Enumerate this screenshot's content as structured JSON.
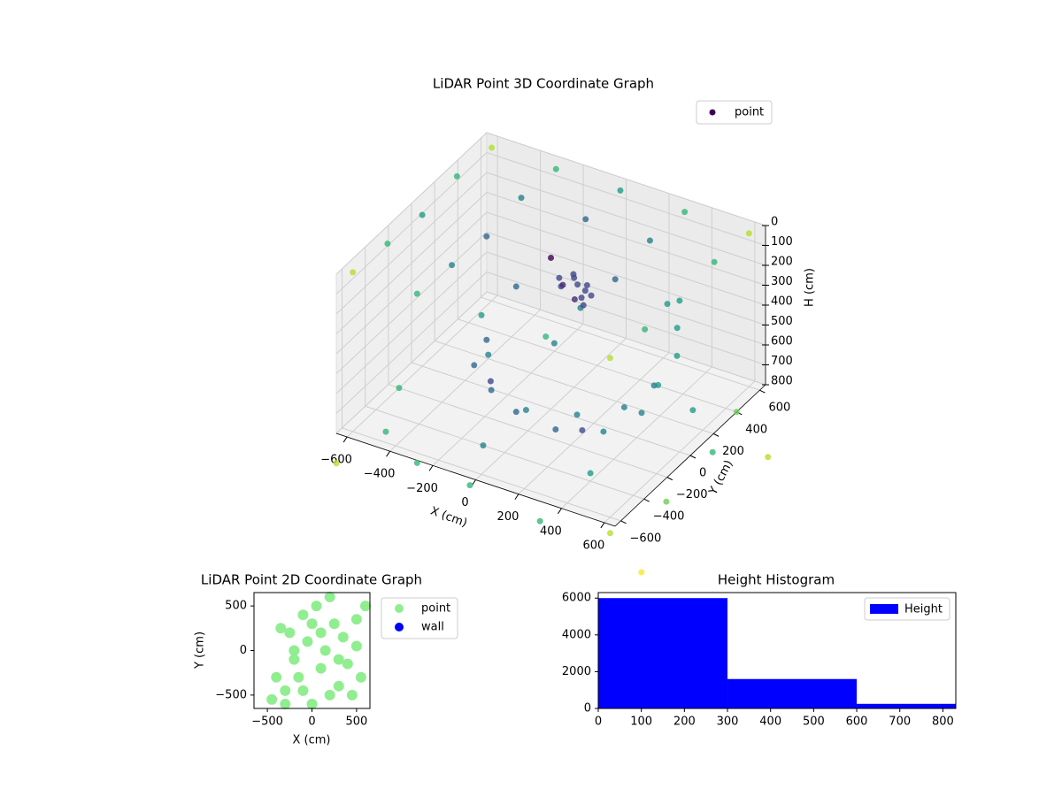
{
  "chart_data": [
    {
      "type": "scatter3d",
      "title": "LiDAR Point 3D Coordinate Graph",
      "xlabel": "X (cm)",
      "ylabel": "Y (cm)",
      "zlabel": "H (cm)",
      "xlim": [
        -650,
        650
      ],
      "ylim": [
        -650,
        650
      ],
      "zlim": [
        800,
        0
      ],
      "xticks": [
        {
          "value": -600,
          "label": "−600"
        },
        {
          "value": -400,
          "label": "−400"
        },
        {
          "value": -200,
          "label": "−200"
        },
        0,
        200,
        400,
        600
      ],
      "yticks": [
        {
          "value": -600,
          "label": "−600"
        },
        {
          "value": -400,
          "label": "−400"
        },
        {
          "value": -200,
          "label": "−200"
        },
        0,
        200,
        400,
        600
      ],
      "zticks": [
        0,
        100,
        200,
        300,
        400,
        500,
        600,
        700,
        800
      ],
      "colormap": "viridis",
      "legend": "upper right",
      "series": [
        {
          "name": "point",
          "color": "#440154",
          "x": [
            -600,
            -600,
            -600,
            -600,
            -600,
            -300,
            -300,
            -300,
            -300,
            -300,
            0,
            0,
            0,
            0,
            0,
            300,
            300,
            300,
            300,
            300,
            600,
            600,
            600,
            600,
            600,
            0,
            50,
            -50,
            30,
            -30,
            80,
            -80,
            20,
            -20,
            60,
            0,
            40,
            -300,
            -250,
            -100,
            100,
            300,
            450,
            500,
            480,
            400,
            300,
            -200,
            0,
            200,
            380,
            450,
            400,
            -600,
            -500,
            -300,
            0,
            300,
            600,
            700,
            700,
            650,
            -400,
            -200,
            200,
            -100,
            400,
            500,
            -650,
            800,
            850
          ],
          "y": [
            -600,
            -300,
            0,
            300,
            600,
            -600,
            -300,
            0,
            300,
            600,
            -600,
            -300,
            0,
            300,
            600,
            -600,
            -300,
            0,
            300,
            600,
            -600,
            -300,
            0,
            300,
            600,
            200,
            220,
            180,
            150,
            250,
            200,
            220,
            260,
            140,
            170,
            230,
            190,
            0,
            -200,
            -330,
            -400,
            -330,
            -200,
            0,
            200,
            350,
            450,
            -150,
            -300,
            -330,
            -250,
            -50,
            150,
            -200,
            -500,
            -600,
            -700,
            -650,
            -600,
            -300,
            100,
            400,
            200,
            400,
            -100,
            -400,
            -400,
            300,
            -650,
            -700,
            300
          ],
          "z": [
            0,
            20,
            40,
            10,
            30,
            0,
            20,
            40,
            10,
            30,
            0,
            20,
            40,
            10,
            30,
            0,
            20,
            40,
            10,
            30,
            0,
            20,
            40,
            10,
            30,
            250,
            280,
            300,
            320,
            270,
            310,
            290,
            340,
            260,
            350,
            300,
            330,
            560,
            560,
            560,
            550,
            540,
            520,
            500,
            470,
            440,
            410,
            650,
            650,
            650,
            640,
            630,
            620,
            800,
            820,
            850,
            800,
            900,
            880,
            850,
            820,
            800,
            780,
            760,
            780,
            800,
            760,
            790,
            950,
            950,
            900
          ]
        }
      ]
    },
    {
      "type": "scatter",
      "title": "LiDAR Point 2D Coordinate Graph",
      "xlabel": "X (cm)",
      "ylabel": "Y (cm)",
      "xlim": [
        -650,
        650
      ],
      "ylim": [
        -650,
        650
      ],
      "xticks": [
        {
          "value": -500,
          "label": "−500"
        },
        0,
        500
      ],
      "yticks": [
        {
          "value": -500,
          "label": "−500"
        },
        0,
        500
      ],
      "legend": "outside right",
      "series": [
        {
          "name": "point",
          "color": "#90ee90",
          "x": [
            -450,
            -400,
            -350,
            -300,
            -250,
            -200,
            -150,
            -100,
            -50,
            0,
            50,
            100,
            150,
            200,
            250,
            300,
            350,
            400,
            450,
            500,
            550,
            600,
            -300,
            -100,
            100,
            300,
            500,
            200,
            0,
            -200
          ],
          "y": [
            -550,
            -300,
            250,
            -450,
            200,
            -100,
            -300,
            400,
            100,
            -600,
            500,
            -200,
            0,
            600,
            300,
            -400,
            150,
            -150,
            -500,
            350,
            -300,
            500,
            -600,
            -450,
            200,
            -100,
            50,
            -500,
            300,
            0
          ]
        },
        {
          "name": "wall",
          "color": "#0000ff",
          "x": [],
          "y": []
        }
      ]
    },
    {
      "type": "histogram",
      "title": "Height Histogram",
      "name": "Height",
      "color": "#0000ff",
      "bins": [
        0,
        300,
        600,
        900
      ],
      "values": [
        6000,
        1600,
        250
      ],
      "xlim": [
        0,
        830
      ],
      "ylim": [
        0,
        6300
      ],
      "xticks": [
        0,
        100,
        200,
        300,
        400,
        500,
        600,
        700,
        800
      ],
      "yticks": [
        0,
        2000,
        4000,
        6000
      ],
      "legend": "upper right"
    }
  ]
}
